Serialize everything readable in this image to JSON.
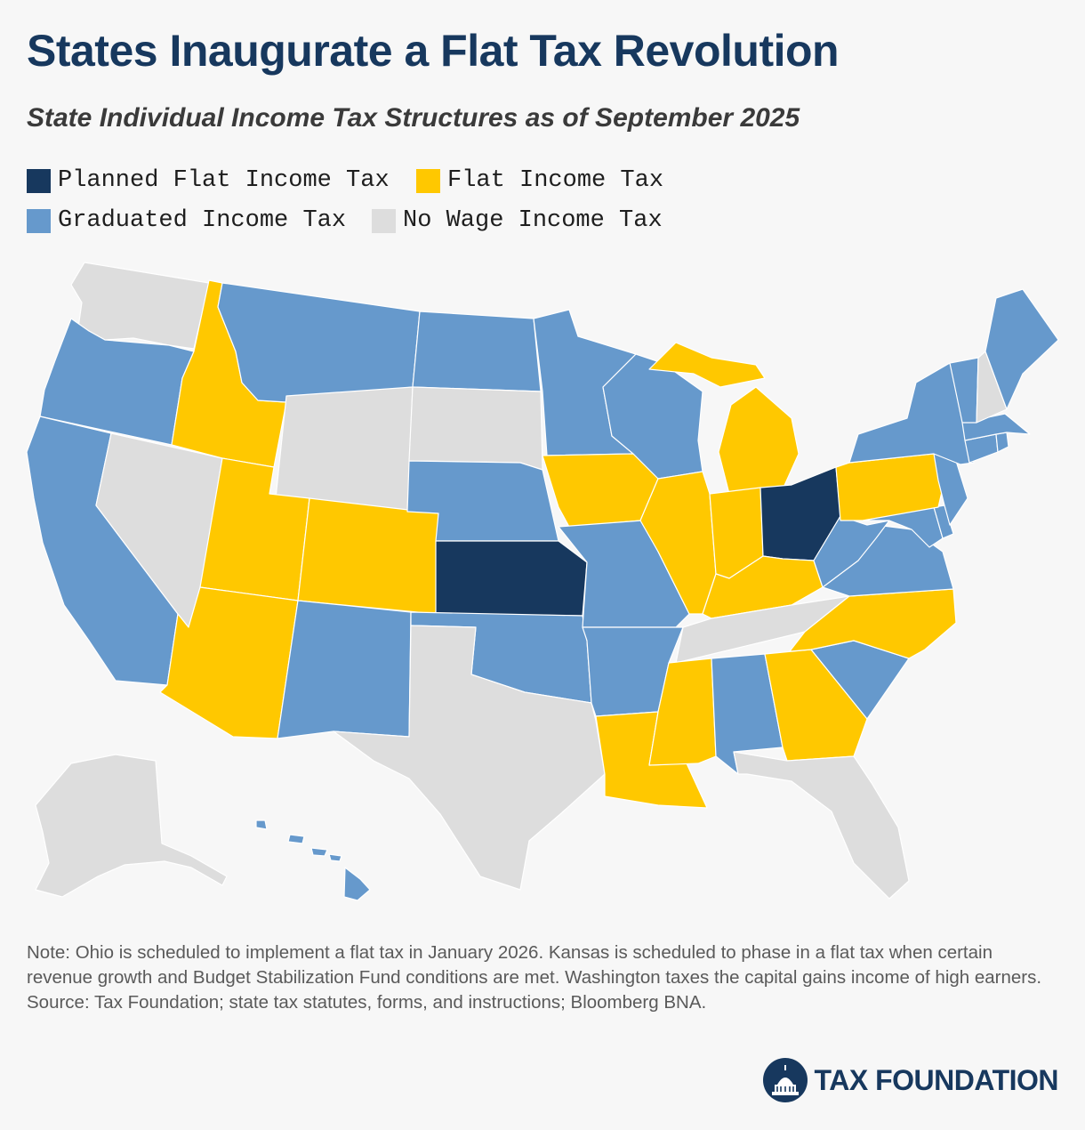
{
  "title": "States Inaugurate a Flat Tax Revolution",
  "subtitle": "State Individual Income Tax Structures as of September 2025",
  "legend": [
    {
      "key": "planned",
      "label": "Planned Flat Income Tax",
      "color": "#17385e"
    },
    {
      "key": "flat",
      "label": "Flat Income Tax",
      "color": "#ffc800"
    },
    {
      "key": "graduated",
      "label": "Graduated Income Tax",
      "color": "#6699cc"
    },
    {
      "key": "none",
      "label": "No Wage Income Tax",
      "color": "#dddddd"
    }
  ],
  "states": {
    "WA": "none",
    "OR": "graduated",
    "CA": "graduated",
    "NV": "none",
    "ID": "flat",
    "MT": "graduated",
    "WY": "none",
    "UT": "flat",
    "AZ": "flat",
    "CO": "flat",
    "NM": "graduated",
    "ND": "graduated",
    "SD": "none",
    "NE": "graduated",
    "KS": "planned",
    "OK": "graduated",
    "TX": "none",
    "MN": "graduated",
    "IA": "flat",
    "MO": "graduated",
    "AR": "graduated",
    "LA": "flat",
    "WI": "graduated",
    "IL": "flat",
    "MI": "flat",
    "IN": "flat",
    "OH": "planned",
    "KY": "flat",
    "TN": "none",
    "MS": "flat",
    "AL": "graduated",
    "GA": "flat",
    "FL": "none",
    "SC": "graduated",
    "NC": "flat",
    "VA": "graduated",
    "WV": "graduated",
    "MD": "graduated",
    "DE": "graduated",
    "PA": "flat",
    "NJ": "graduated",
    "NY": "graduated",
    "CT": "graduated",
    "RI": "graduated",
    "MA": "graduated",
    "VT": "graduated",
    "NH": "none",
    "ME": "graduated",
    "AK": "none",
    "HI": "graduated"
  },
  "note": "Note: Ohio is scheduled to implement a flat tax in January 2026. Kansas is scheduled to phase in a flat tax when certain revenue growth and Budget Stabilization Fund conditions are met. Washington taxes the capital gains income of high earners.",
  "source": "Source: Tax Foundation; state tax statutes, forms, and instructions; Bloomberg BNA.",
  "logo_text": "TAX FOUNDATION"
}
